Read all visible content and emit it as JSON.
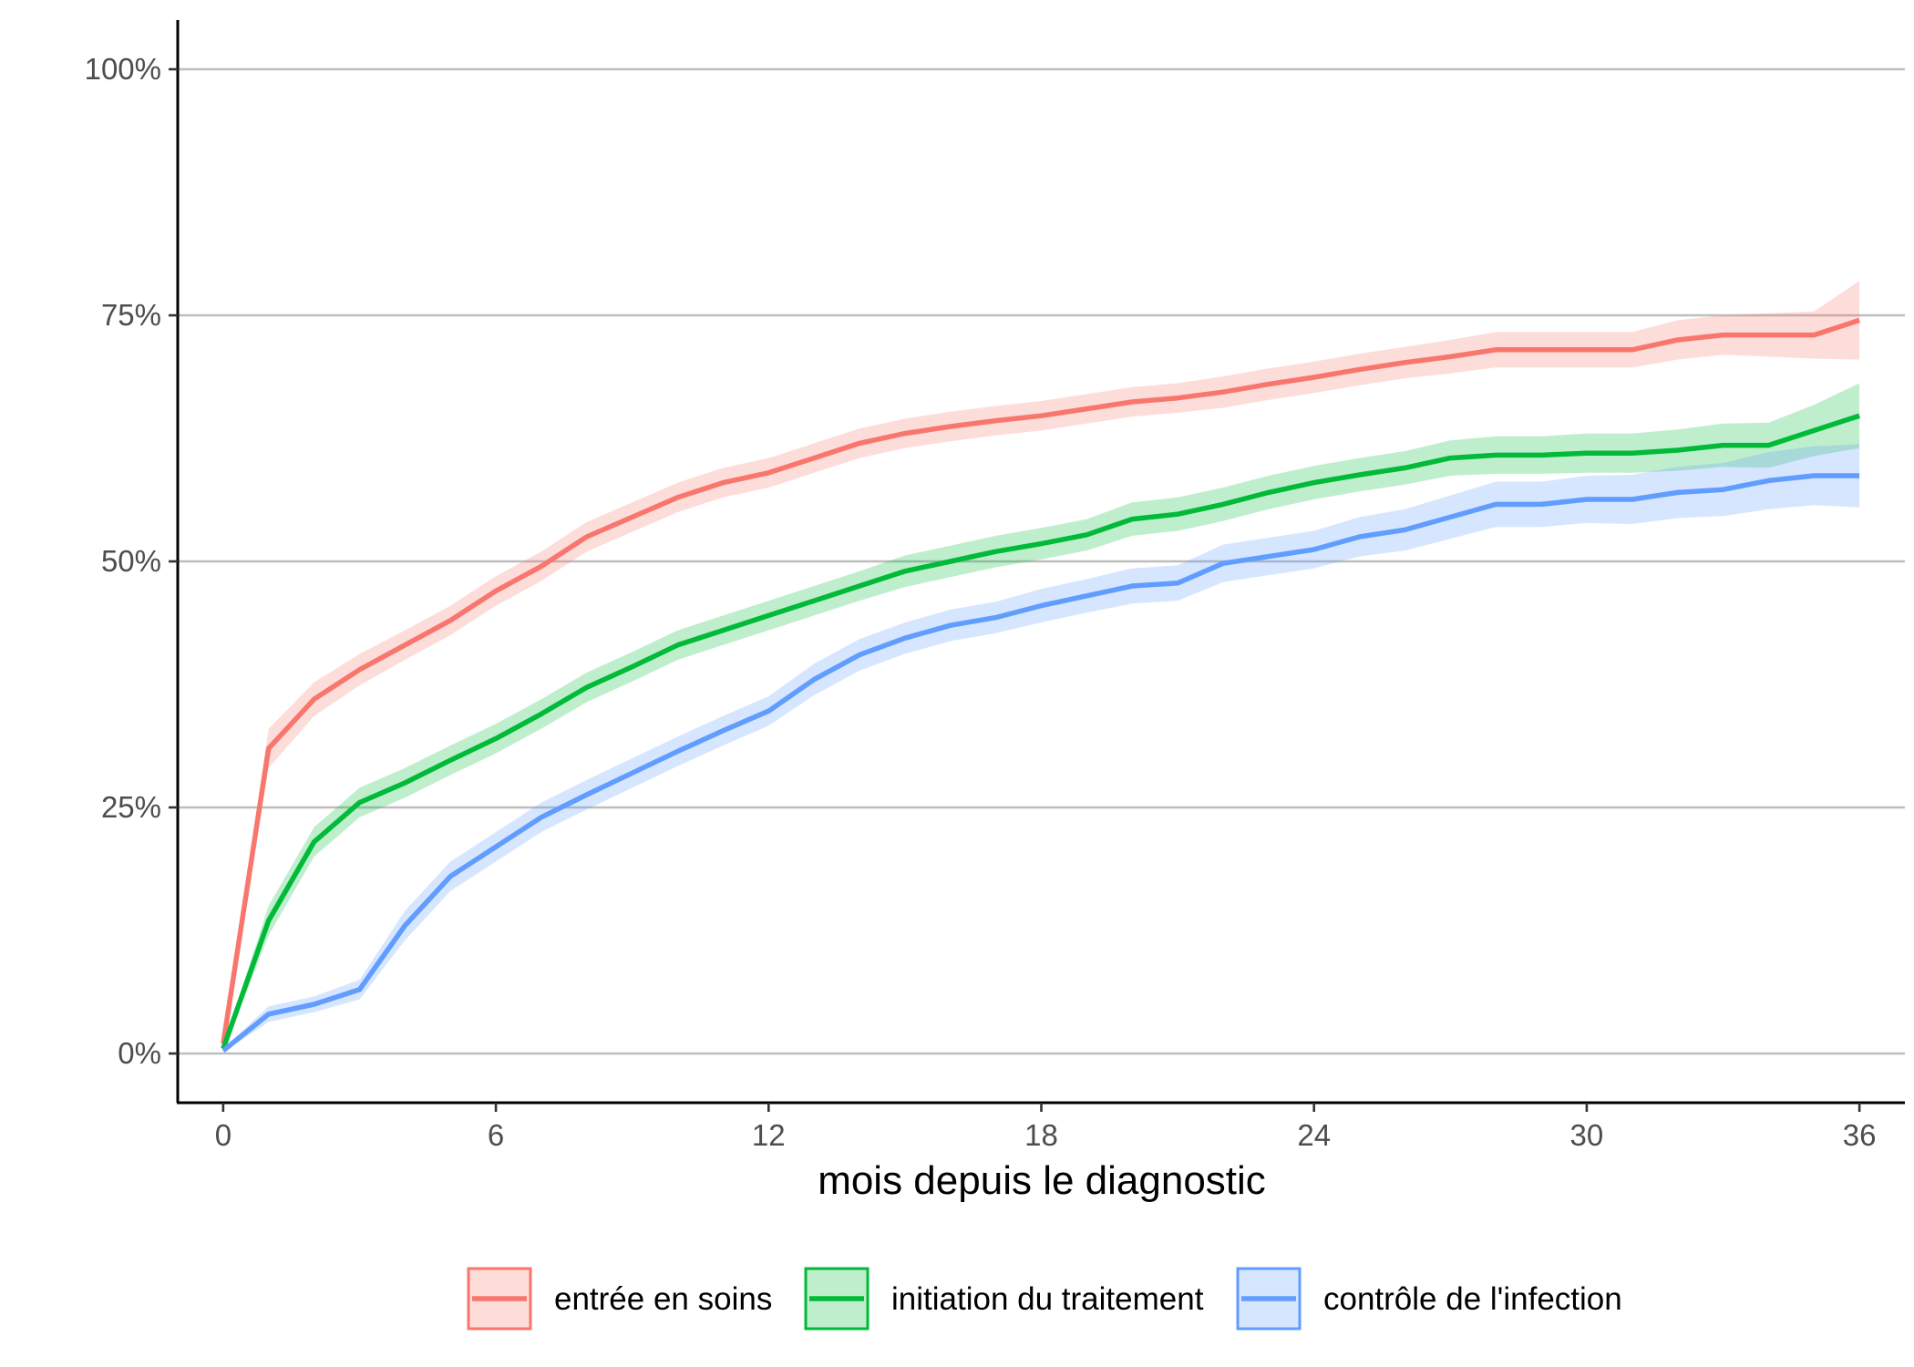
{
  "colors": {
    "entree": "#F8766D",
    "initiation": "#00BA38",
    "controle": "#619CFF",
    "grid": "#BEBEBE",
    "axis": "#000000"
  },
  "chart_data": {
    "type": "line",
    "xlabel": "mois depuis le diagnostic",
    "ylabel": "",
    "xlim": [
      -1,
      37
    ],
    "ylim": [
      -0.05,
      1.05
    ],
    "x_ticks": [
      0,
      6,
      12,
      18,
      24,
      30,
      36
    ],
    "x_tick_labels": [
      "0",
      "6",
      "12",
      "18",
      "24",
      "30",
      "36"
    ],
    "y_ticks": [
      0,
      0.25,
      0.5,
      0.75,
      1.0
    ],
    "y_tick_labels": [
      "0%",
      "25%",
      "50%",
      "75%",
      "100%"
    ],
    "grid": "horizontal major",
    "legend_position": "bottom",
    "x": [
      0,
      1,
      2,
      3,
      4,
      5,
      6,
      7,
      8,
      9,
      10,
      11,
      12,
      13,
      14,
      15,
      16,
      17,
      18,
      19,
      20,
      21,
      22,
      23,
      24,
      25,
      26,
      27,
      28,
      29,
      30,
      31,
      32,
      33,
      34,
      35,
      36
    ],
    "series": [
      {
        "name": "entrée en soins",
        "color_key": "entree",
        "values": [
          0.01,
          0.31,
          0.36,
          0.39,
          0.415,
          0.44,
          0.47,
          0.495,
          0.525,
          0.545,
          0.565,
          0.58,
          0.59,
          0.605,
          0.62,
          0.63,
          0.637,
          0.643,
          0.648,
          0.655,
          0.662,
          0.666,
          0.672,
          0.68,
          0.687,
          0.695,
          0.702,
          0.708,
          0.715,
          0.715,
          0.715,
          0.715,
          0.725,
          0.73,
          0.73,
          0.73,
          0.745
        ],
        "lower": [
          0.005,
          0.29,
          0.343,
          0.374,
          0.4,
          0.425,
          0.455,
          0.48,
          0.51,
          0.53,
          0.55,
          0.565,
          0.575,
          0.59,
          0.605,
          0.615,
          0.622,
          0.628,
          0.633,
          0.64,
          0.647,
          0.651,
          0.656,
          0.664,
          0.671,
          0.679,
          0.686,
          0.691,
          0.697,
          0.697,
          0.697,
          0.697,
          0.705,
          0.71,
          0.708,
          0.706,
          0.705
        ],
        "upper": [
          0.015,
          0.33,
          0.377,
          0.406,
          0.43,
          0.455,
          0.485,
          0.51,
          0.54,
          0.56,
          0.58,
          0.595,
          0.605,
          0.62,
          0.635,
          0.645,
          0.652,
          0.658,
          0.663,
          0.67,
          0.677,
          0.681,
          0.688,
          0.696,
          0.703,
          0.711,
          0.718,
          0.725,
          0.733,
          0.733,
          0.733,
          0.733,
          0.745,
          0.75,
          0.752,
          0.754,
          0.785
        ]
      },
      {
        "name": "initiation du traitement",
        "color_key": "initiation",
        "values": [
          0.005,
          0.135,
          0.215,
          0.255,
          0.275,
          0.298,
          0.32,
          0.345,
          0.372,
          0.393,
          0.415,
          0.43,
          0.445,
          0.46,
          0.475,
          0.49,
          0.5,
          0.51,
          0.518,
          0.527,
          0.543,
          0.548,
          0.558,
          0.57,
          0.58,
          0.588,
          0.595,
          0.605,
          0.608,
          0.608,
          0.61,
          0.61,
          0.613,
          0.618,
          0.618,
          0.633,
          0.648
        ],
        "lower": [
          0.002,
          0.12,
          0.2,
          0.24,
          0.26,
          0.283,
          0.305,
          0.33,
          0.357,
          0.378,
          0.4,
          0.415,
          0.43,
          0.445,
          0.46,
          0.474,
          0.484,
          0.494,
          0.502,
          0.511,
          0.526,
          0.531,
          0.541,
          0.553,
          0.563,
          0.571,
          0.578,
          0.587,
          0.589,
          0.589,
          0.59,
          0.59,
          0.592,
          0.596,
          0.595,
          0.607,
          0.615
        ],
        "upper": [
          0.008,
          0.15,
          0.23,
          0.27,
          0.29,
          0.313,
          0.335,
          0.36,
          0.387,
          0.408,
          0.43,
          0.445,
          0.46,
          0.475,
          0.49,
          0.506,
          0.516,
          0.526,
          0.534,
          0.543,
          0.56,
          0.565,
          0.575,
          0.587,
          0.597,
          0.605,
          0.612,
          0.623,
          0.627,
          0.627,
          0.63,
          0.63,
          0.634,
          0.64,
          0.641,
          0.659,
          0.681
        ]
      },
      {
        "name": "contrôle de l'infection",
        "color_key": "controle",
        "values": [
          0.003,
          0.04,
          0.05,
          0.065,
          0.13,
          0.18,
          0.21,
          0.24,
          0.263,
          0.285,
          0.307,
          0.328,
          0.348,
          0.38,
          0.405,
          0.422,
          0.435,
          0.443,
          0.455,
          0.465,
          0.475,
          0.478,
          0.498,
          0.505,
          0.512,
          0.525,
          0.532,
          0.545,
          0.558,
          0.558,
          0.563,
          0.563,
          0.57,
          0.573,
          0.582,
          0.587,
          0.587
        ],
        "lower": [
          0.001,
          0.032,
          0.042,
          0.055,
          0.115,
          0.165,
          0.195,
          0.225,
          0.248,
          0.27,
          0.292,
          0.313,
          0.333,
          0.364,
          0.389,
          0.406,
          0.419,
          0.427,
          0.438,
          0.448,
          0.457,
          0.46,
          0.479,
          0.486,
          0.493,
          0.505,
          0.511,
          0.523,
          0.535,
          0.535,
          0.539,
          0.538,
          0.544,
          0.546,
          0.553,
          0.557,
          0.555
        ],
        "upper": [
          0.005,
          0.048,
          0.058,
          0.075,
          0.145,
          0.195,
          0.225,
          0.255,
          0.278,
          0.3,
          0.322,
          0.343,
          0.363,
          0.396,
          0.421,
          0.438,
          0.451,
          0.459,
          0.472,
          0.482,
          0.493,
          0.496,
          0.517,
          0.524,
          0.531,
          0.545,
          0.553,
          0.567,
          0.581,
          0.581,
          0.587,
          0.588,
          0.596,
          0.6,
          0.611,
          0.617,
          0.619
        ]
      }
    ]
  }
}
